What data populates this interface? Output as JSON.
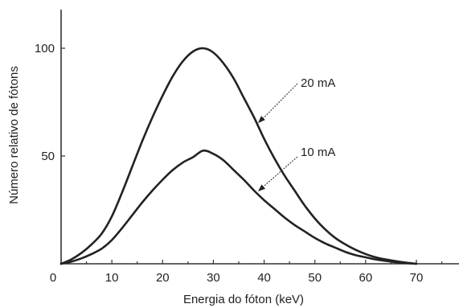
{
  "chart_data": {
    "type": "line",
    "xlabel": "Energia do fóton (keV)",
    "ylabel": "Número relativo de fótons",
    "xlim": [
      0,
      80
    ],
    "ylim": [
      0,
      118
    ],
    "x_ticks": [
      0,
      10,
      20,
      30,
      40,
      50,
      60,
      70
    ],
    "y_ticks": [
      50,
      100
    ],
    "grid": false,
    "series": [
      {
        "name": "20 mA",
        "x": [
          0,
          2,
          4,
          6,
          8,
          10,
          12,
          14,
          16,
          18,
          20,
          22,
          24,
          26,
          28,
          30,
          32,
          34,
          36,
          38,
          40,
          42,
          44,
          46,
          48,
          50,
          52,
          54,
          56,
          58,
          60,
          62,
          64,
          66,
          68,
          70
        ],
        "y": [
          0,
          2,
          5,
          9,
          14,
          22,
          33,
          45,
          57,
          68,
          78,
          87,
          94,
          98.5,
          100,
          98,
          93,
          86,
          77,
          68,
          58,
          49,
          41,
          34,
          27,
          21,
          16,
          12,
          9,
          6.5,
          4.5,
          3,
          2,
          1.2,
          0.5,
          0
        ]
      },
      {
        "name": "10 mA",
        "x": [
          0,
          2,
          4,
          6,
          8,
          10,
          12,
          14,
          16,
          18,
          20,
          22,
          24,
          26,
          28,
          30,
          32,
          34,
          36,
          38,
          40,
          42,
          44,
          46,
          48,
          50,
          52,
          54,
          56,
          58,
          60,
          62,
          64,
          66,
          68,
          70
        ],
        "y": [
          0,
          1,
          2.5,
          4.5,
          7,
          11,
          16.5,
          22.5,
          28.5,
          34,
          39,
          43.5,
          47,
          49.5,
          52.5,
          51,
          48,
          43.5,
          39,
          34,
          29.5,
          25.5,
          21.5,
          18,
          15,
          12,
          9.5,
          7.5,
          5.5,
          4,
          3,
          2,
          1.3,
          0.7,
          0.3,
          0
        ]
      }
    ]
  }
}
